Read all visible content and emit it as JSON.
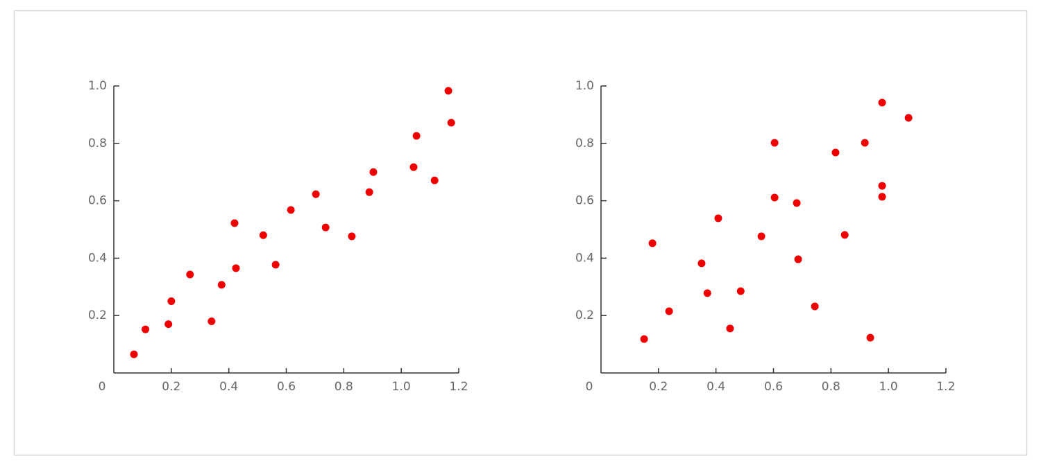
{
  "chart_data": [
    {
      "type": "scatter",
      "color": "#ee0000",
      "x": [
        0.07,
        0.11,
        0.19,
        0.2,
        0.265,
        0.34,
        0.375,
        0.42,
        0.425,
        0.52,
        0.563,
        0.616,
        0.703,
        0.737,
        0.828,
        0.889,
        0.903,
        1.043,
        1.053,
        1.116,
        1.164,
        1.174
      ],
      "values": [
        0.065,
        0.152,
        0.17,
        0.25,
        0.343,
        0.18,
        0.307,
        0.522,
        0.365,
        0.48,
        0.377,
        0.568,
        0.623,
        0.507,
        0.476,
        0.63,
        0.7,
        0.717,
        0.826,
        0.671,
        0.983,
        0.872
      ],
      "xlim": [
        0,
        1.2
      ],
      "ylim": [
        0,
        1
      ],
      "xticks": [
        0,
        0.2,
        0.4,
        0.6,
        0.8,
        {
          "value": 1,
          "label": "1.0"
        },
        1.2
      ],
      "yticks": [
        0.2,
        0.4,
        0.6,
        0.8,
        {
          "value": 1,
          "label": "1.0"
        }
      ]
    },
    {
      "type": "scatter",
      "color": "#ee0000",
      "x": [
        0.15,
        0.179,
        0.237,
        0.35,
        0.37,
        0.408,
        0.449,
        0.486,
        0.558,
        0.604,
        0.604,
        0.681,
        0.686,
        0.744,
        0.816,
        0.848,
        0.918,
        0.937,
        0.978,
        0.978,
        0.978,
        1.07
      ],
      "values": [
        0.118,
        0.452,
        0.215,
        0.382,
        0.278,
        0.539,
        0.155,
        0.285,
        0.476,
        0.802,
        0.611,
        0.592,
        0.396,
        0.232,
        0.768,
        0.481,
        0.802,
        0.123,
        0.942,
        0.652,
        0.614,
        0.889
      ],
      "xlim": [
        0,
        1.2
      ],
      "ylim": [
        0,
        1
      ],
      "xticks": [
        0,
        0.2,
        0.4,
        0.6,
        0.8,
        {
          "value": 1,
          "label": "1.0"
        },
        1.2
      ],
      "yticks": [
        0.2,
        0.4,
        0.6,
        0.8,
        {
          "value": 1,
          "label": "1.0"
        }
      ]
    }
  ]
}
